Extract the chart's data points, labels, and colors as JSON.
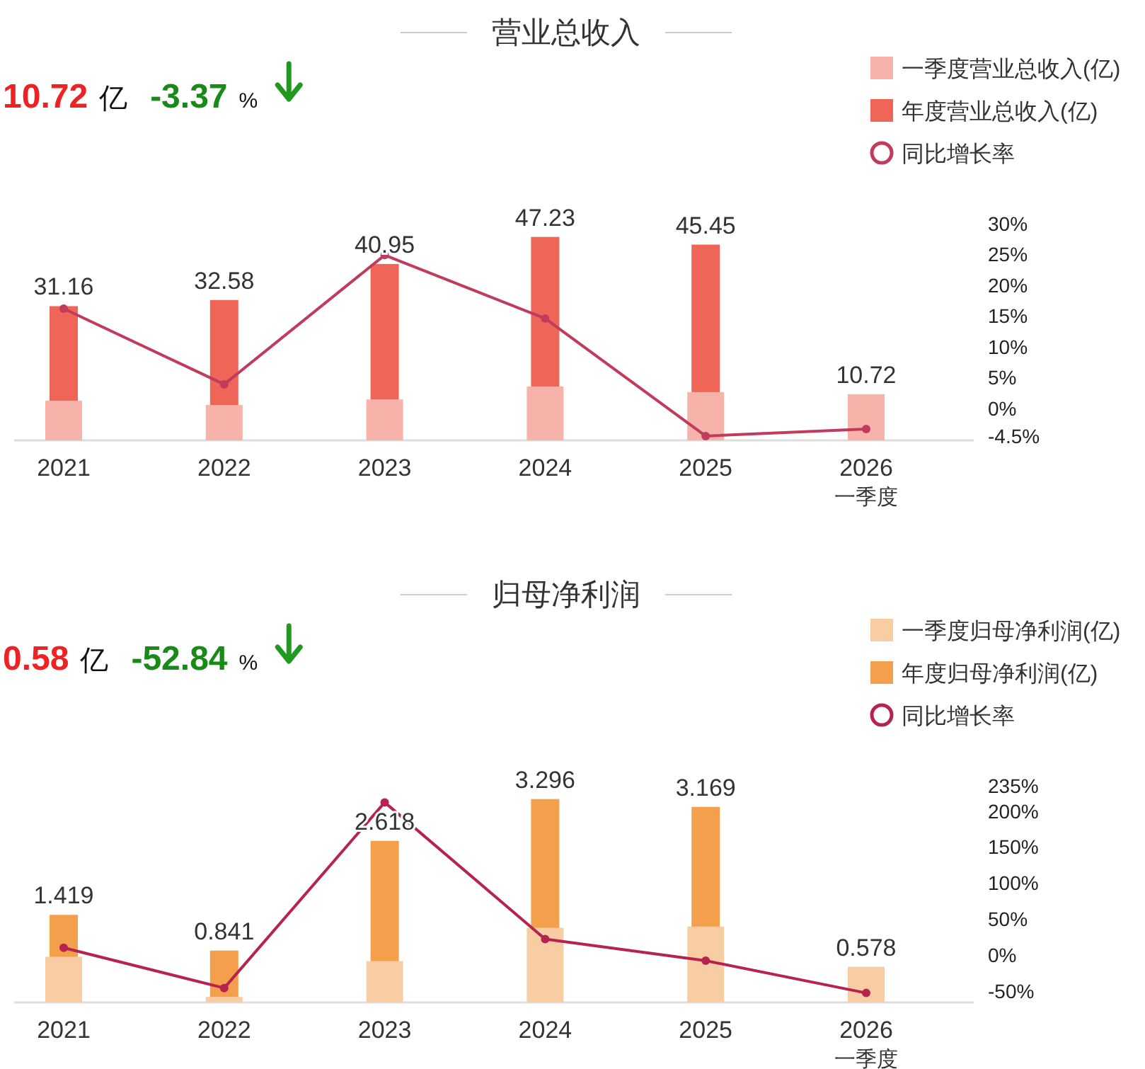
{
  "chart_data": [
    {
      "type": "bar",
      "title": "营业总收入",
      "categories": [
        "2021",
        "2022",
        "2023",
        "2024",
        "2025",
        "2026\n一季度"
      ],
      "series": [
        {
          "name": "一季度营业总收入(亿)",
          "color": "#f7b3aa",
          "values": [
            9.2,
            8.2,
            9.5,
            12.5,
            11.2,
            10.72
          ],
          "value_labels": [
            null,
            null,
            null,
            null,
            null,
            "10.72"
          ]
        },
        {
          "name": "年度营业总收入(亿)",
          "color": "#ef6659",
          "values": [
            31.16,
            32.58,
            40.95,
            47.23,
            45.45,
            null
          ],
          "value_labels": [
            "31.16",
            "32.58",
            "40.95",
            "47.23",
            "45.45",
            null
          ]
        },
        {
          "name": "同比增长率",
          "type": "line",
          "axis": "y2",
          "color": "#c03b5c",
          "values": [
            16.2,
            3.9,
            24.9,
            14.6,
            -4.5,
            -3.37
          ]
        }
      ],
      "y2lim": [
        -5.2,
        30
      ],
      "y2ticks": [
        {
          "value": -4.5,
          "label": "-4.5%"
        },
        {
          "value": 0,
          "label": "0%"
        },
        {
          "value": 5,
          "label": "5%"
        },
        {
          "value": 10,
          "label": "10%"
        },
        {
          "value": 15,
          "label": "15%"
        },
        {
          "value": 20,
          "label": "20%"
        },
        {
          "value": 25,
          "label": "25%"
        },
        {
          "value": 30,
          "label": "30%"
        }
      ],
      "annotations": [
        "10.72",
        "亿",
        "-3.37",
        "%"
      ],
      "legend": "top right",
      "marker": "circle",
      "grid": false
    },
    {
      "type": "bar",
      "title": "归母净利润",
      "categories": [
        "2021",
        "2022",
        "2023",
        "2024",
        "2025",
        "2026\n一季度"
      ],
      "series": [
        {
          "name": "一季度归母净利润(亿)",
          "color": "#f9cda4",
          "values": [
            0.74,
            0.09,
            0.67,
            1.21,
            1.23,
            0.578
          ],
          "value_labels": [
            null,
            null,
            null,
            null,
            null,
            "0.578"
          ]
        },
        {
          "name": "年度归母净利润(亿)",
          "color": "#f49f4c",
          "values": [
            1.419,
            0.841,
            2.618,
            3.296,
            3.169,
            null
          ],
          "value_labels": [
            "1.419",
            "0.841",
            "2.618",
            "3.296",
            "3.169",
            null
          ]
        },
        {
          "name": "同比增长率",
          "type": "line",
          "axis": "y2",
          "color": "#b5234e",
          "values": [
            10,
            -46,
            212,
            22,
            -8,
            -52.84
          ]
        }
      ],
      "y2lim": [
        -66,
        235
      ],
      "y2ticks": [
        {
          "value": -50,
          "label": "-50%"
        },
        {
          "value": 0,
          "label": "0%"
        },
        {
          "value": 50,
          "label": "50%"
        },
        {
          "value": 100,
          "label": "100%"
        },
        {
          "value": 150,
          "label": "150%"
        },
        {
          "value": 200,
          "label": "200%"
        },
        {
          "value": 235,
          "label": "235%"
        }
      ],
      "annotations": [
        "0.58",
        "亿",
        "-52.84",
        "%"
      ],
      "legend": "top right",
      "marker": "circle",
      "grid": false
    }
  ]
}
